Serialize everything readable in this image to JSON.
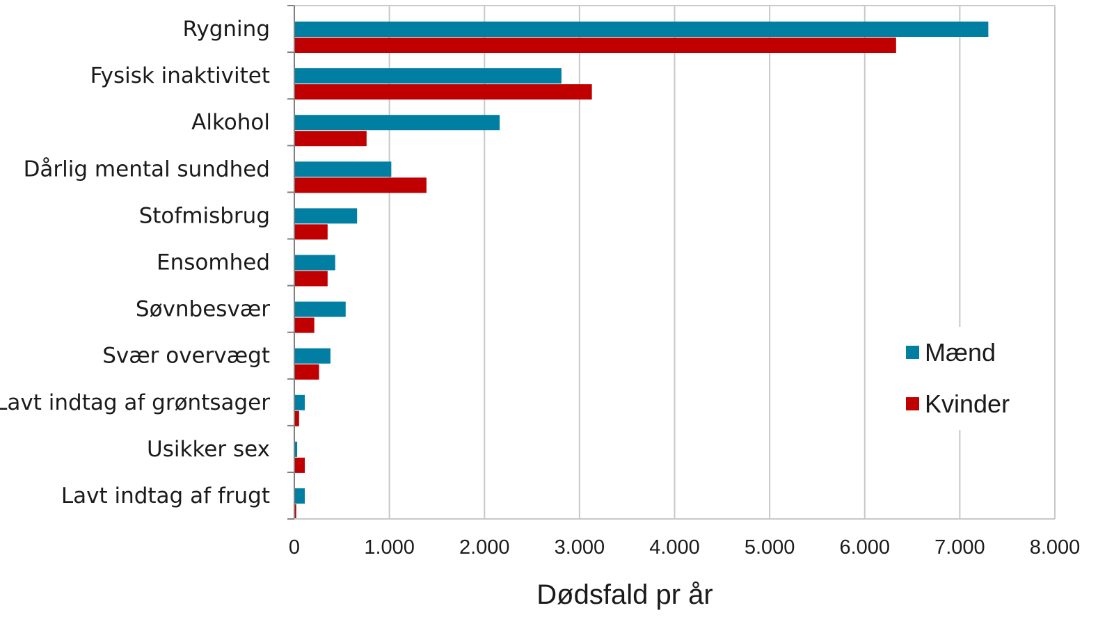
{
  "chart_data": {
    "type": "bar",
    "orientation": "horizontal",
    "categories": [
      "Rygning",
      "Fysisk inaktivitet",
      "Alkohol",
      "Dårlig mental sundhed",
      "Stofmisbrug",
      "Ensomhed",
      "Søvnbesvær",
      "Svær overvægt",
      "Lavt indtag af grøntsager",
      "Usikker sex",
      "Lavt indtag af frugt"
    ],
    "series": [
      {
        "name": "Mænd",
        "color": "#007fa3",
        "values": [
          7300,
          2810,
          2160,
          1020,
          660,
          430,
          540,
          380,
          110,
          30,
          110
        ]
      },
      {
        "name": "Kvinder",
        "color": "#c00000",
        "values": [
          6330,
          3130,
          760,
          1390,
          350,
          350,
          210,
          260,
          50,
          110,
          20
        ]
      }
    ],
    "title": "",
    "xlabel": "Dødsfald pr år",
    "ylabel": "",
    "xlim": [
      0,
      8000
    ],
    "xticks": [
      0,
      1000,
      2000,
      3000,
      4000,
      5000,
      6000,
      7000,
      8000
    ],
    "xtick_labels": [
      "0",
      "1.000",
      "2.000",
      "3.000",
      "4.000",
      "5.000",
      "6.000",
      "7.000",
      "8.000"
    ],
    "grid": "vertical",
    "legend_position": "bottom-right"
  }
}
